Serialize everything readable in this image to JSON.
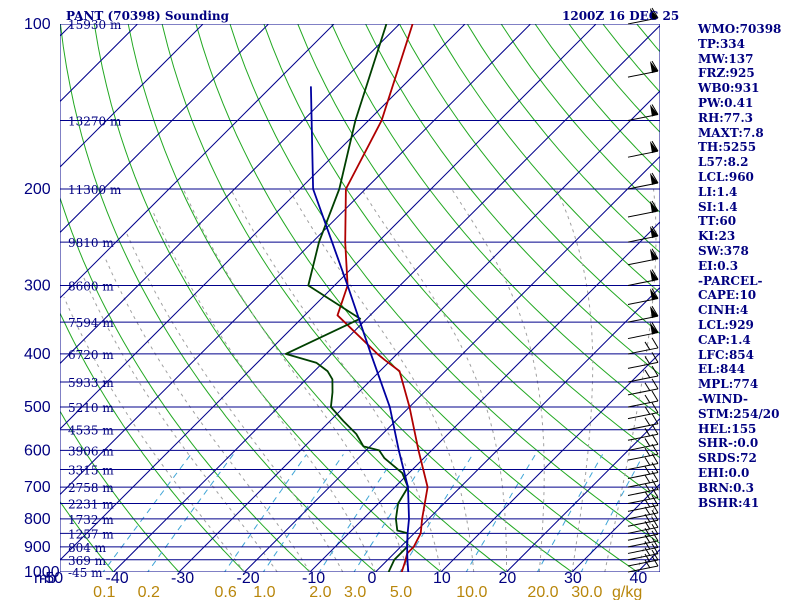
{
  "header": {
    "station": "PANT (70398) Sounding",
    "time": "1200Z 16 DEC 25"
  },
  "pressure_label": "mb",
  "mixing_ratio_unit": "g/kg",
  "stats": [
    "WMO:70398",
    "TP:334",
    "MW:137",
    "FRZ:925",
    "WB0:931",
    "PW:0.41",
    "RH:77.3",
    "MAXT:7.8",
    "TH:5255",
    "L57:8.2",
    "LCL:960",
    "LI:1.4",
    "SI:1.4",
    "TT:60",
    "KI:23",
    "SW:378",
    "EI:0.3",
    "-PARCEL-",
    "CAPE:10",
    "CINH:4",
    "LCL:929",
    "CAP:1.4",
    "LFC:854",
    "EL:844",
    "MPL:774",
    "-WIND-",
    "STM:254/20",
    "HEL:155",
    "SHR-:0.0",
    "SRDS:72",
    "EHI:0.0",
    "BRN:0.3",
    "BSHR:41"
  ],
  "chart_data": {
    "type": "skew-t",
    "title": "PANT (70398) Sounding",
    "valid_time": "1200Z 16 DEC 25",
    "xlabel": "",
    "ylabel": "mb",
    "pressure_ticks": [
      100,
      200,
      300,
      400,
      500,
      600,
      700,
      800,
      900,
      1000
    ],
    "temperature_ticks": [
      -50,
      -40,
      -30,
      -20,
      -10,
      0,
      10,
      20,
      30,
      40
    ],
    "temperature_tick_labels": [
      "-50",
      "-40",
      "-30",
      "-20",
      "-10",
      "0",
      "10",
      "20",
      "30",
      "40"
    ],
    "xlim": [
      -50,
      40
    ],
    "ylim": [
      1000,
      100
    ],
    "mixing_ratio_labels": [
      "0.1",
      "0.2",
      "0.6",
      "1.0",
      "2.0",
      "3.0",
      "5.0",
      "10.0",
      "20.0",
      "30.0"
    ],
    "mixing_ratio_values": [
      0.1,
      0.2,
      0.6,
      1.0,
      2.0,
      3.0,
      5.0,
      10.0,
      20.0,
      30.0
    ],
    "heights": [
      {
        "p": 100,
        "label": "15930 m"
      },
      {
        "p": 150,
        "label": "13270 m"
      },
      {
        "p": 200,
        "label": "11300 m"
      },
      {
        "p": 250,
        "label": "9810 m"
      },
      {
        "p": 300,
        "label": "8600 m"
      },
      {
        "p": 350,
        "label": "7594 m"
      },
      {
        "p": 400,
        "label": "6720 m"
      },
      {
        "p": 450,
        "label": "5933 m"
      },
      {
        "p": 500,
        "label": "5210 m"
      },
      {
        "p": 550,
        "label": "4535 m"
      },
      {
        "p": 600,
        "label": "3906 m"
      },
      {
        "p": 650,
        "label": "3315 m"
      },
      {
        "p": 700,
        "label": "2758 m"
      },
      {
        "p": 750,
        "label": "2231 m"
      },
      {
        "p": 800,
        "label": "1732 m"
      },
      {
        "p": 850,
        "label": "1257 m"
      },
      {
        "p": 900,
        "label": "804 m"
      },
      {
        "p": 950,
        "label": "369 m"
      },
      {
        "p": 1000,
        "label": "-45 m"
      }
    ],
    "series": [
      {
        "name": "temperature",
        "color": "#b00000",
        "points": [
          [
            100,
            -78
          ],
          [
            150,
            -68
          ],
          [
            200,
            -63
          ],
          [
            250,
            -55
          ],
          [
            300,
            -48
          ],
          [
            340,
            -45
          ],
          [
            400,
            -33
          ],
          [
            410,
            -31
          ],
          [
            430,
            -27
          ],
          [
            500,
            -20
          ],
          [
            600,
            -12
          ],
          [
            700,
            -5
          ],
          [
            800,
            -1
          ],
          [
            850,
            1
          ],
          [
            900,
            2
          ],
          [
            925,
            2
          ],
          [
            960,
            3
          ],
          [
            1000,
            4
          ]
        ]
      },
      {
        "name": "dewpoint",
        "color": "#004000",
        "points": [
          [
            100,
            -82
          ],
          [
            150,
            -72
          ],
          [
            200,
            -64
          ],
          [
            250,
            -59
          ],
          [
            300,
            -54
          ],
          [
            345,
            -41
          ],
          [
            400,
            -47
          ],
          [
            415,
            -41
          ],
          [
            430,
            -38
          ],
          [
            445,
            -36
          ],
          [
            470,
            -34
          ],
          [
            500,
            -32
          ],
          [
            530,
            -28
          ],
          [
            560,
            -24
          ],
          [
            590,
            -21
          ],
          [
            600,
            -18
          ],
          [
            620,
            -16
          ],
          [
            660,
            -11
          ],
          [
            700,
            -8
          ],
          [
            750,
            -7
          ],
          [
            800,
            -5
          ],
          [
            840,
            -3
          ],
          [
            850,
            -1
          ],
          [
            900,
            1
          ],
          [
            950,
            1
          ],
          [
            1000,
            2
          ]
        ]
      },
      {
        "name": "parcel",
        "color": "#0000a0",
        "points": [
          [
            130,
            -84
          ],
          [
            200,
            -68
          ],
          [
            300,
            -48
          ],
          [
            400,
            -34
          ],
          [
            500,
            -23
          ],
          [
            600,
            -15
          ],
          [
            700,
            -8
          ],
          [
            800,
            -3
          ],
          [
            850,
            -1
          ],
          [
            900,
            1
          ],
          [
            950,
            3
          ],
          [
            1000,
            5
          ]
        ]
      }
    ],
    "wind_pressures": [
      1000,
      975,
      950,
      925,
      900,
      875,
      850,
      825,
      800,
      775,
      750,
      725,
      700,
      675,
      650,
      625,
      600,
      575,
      550,
      525,
      500,
      475,
      450,
      425,
      400,
      375,
      350,
      325,
      300,
      275,
      250,
      225,
      200,
      175,
      150,
      125,
      100
    ],
    "grid": true,
    "legend": "right"
  }
}
